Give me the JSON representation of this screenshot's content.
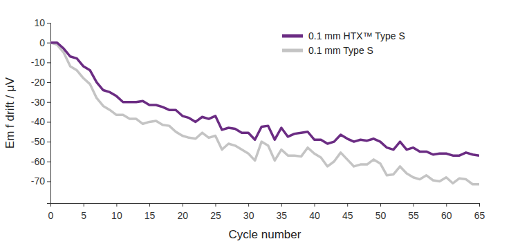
{
  "chart_data": {
    "type": "line",
    "x_label": "Cycle number",
    "y_label": "Em f drift / μV",
    "x": [
      0,
      1,
      2,
      3,
      4,
      5,
      6,
      7,
      8,
      9,
      10,
      11,
      12,
      13,
      14,
      15,
      16,
      17,
      18,
      19,
      20,
      21,
      22,
      23,
      24,
      25,
      26,
      27,
      28,
      29,
      30,
      31,
      32,
      33,
      34,
      35,
      36,
      37,
      38,
      39,
      40,
      41,
      42,
      43,
      44,
      45,
      46,
      47,
      48,
      49,
      50,
      51,
      52,
      53,
      54,
      55,
      56,
      57,
      58,
      59,
      60,
      61,
      62,
      63,
      64,
      65
    ],
    "series": [
      {
        "name": "0.1 mm HTX™ Type S",
        "color": "#6b2c83",
        "values": [
          0,
          0,
          -3,
          -7,
          -8,
          -12,
          -14,
          -20,
          -24,
          -25,
          -27,
          -30,
          -30,
          -30,
          -29.5,
          -31.5,
          -31.5,
          -32.5,
          -34,
          -34,
          -37,
          -38,
          -40,
          -37.5,
          -38.5,
          -37,
          -44,
          -43,
          -43.5,
          -45.5,
          -45.5,
          -49,
          -42.5,
          -42,
          -49,
          -43,
          -47.5,
          -46,
          -45.5,
          -45,
          -49,
          -49,
          -51,
          -50,
          -46.5,
          -48.5,
          -50,
          -49,
          -49.5,
          -48.5,
          -50,
          -53,
          -54,
          -50,
          -54,
          -53,
          -55,
          -55,
          -56.5,
          -56,
          -56,
          -57,
          -57,
          -55.5,
          -56.5,
          -57
        ]
      },
      {
        "name": "0.1 mm Type S",
        "color": "#c4c4c4",
        "values": [
          0,
          -1,
          -5,
          -12,
          -14,
          -18,
          -21,
          -28,
          -32,
          -34,
          -36.5,
          -36.5,
          -38.5,
          -38.5,
          -41,
          -40,
          -39.5,
          -41.5,
          -42,
          -45,
          -47,
          -48,
          -48.5,
          -45.5,
          -48,
          -47,
          -54,
          -51,
          -52,
          -54,
          -56,
          -59.5,
          -50,
          -52,
          -59.5,
          -54,
          -57,
          -57,
          -57.5,
          -53,
          -56,
          -58,
          -62.5,
          -60,
          -55.5,
          -59,
          -62.5,
          -61.5,
          -61.5,
          -59,
          -61,
          -67,
          -66.5,
          -62.5,
          -66,
          -68,
          -69,
          -67,
          -69.5,
          -70,
          -68,
          -71,
          -68.5,
          -69,
          -71.5,
          -71.5
        ]
      }
    ],
    "xlim": [
      0,
      65
    ],
    "xticks": [
      0,
      5,
      10,
      15,
      20,
      25,
      30,
      35,
      40,
      45,
      50,
      55,
      60,
      65
    ],
    "ylim": [
      -81,
      10
    ],
    "yticks": [
      -70,
      -60,
      -50,
      -40,
      -30,
      -20,
      -10,
      0,
      10
    ],
    "grid": false,
    "legend": "top-right"
  }
}
